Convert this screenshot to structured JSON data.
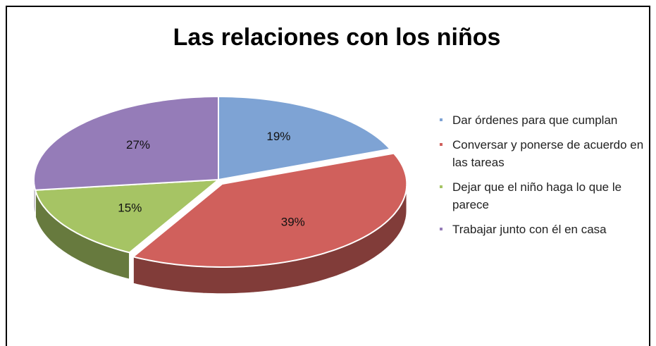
{
  "chart_data": {
    "type": "pie3d",
    "title": "Las relaciones con los niños",
    "categories": [
      "Dar órdenes para que cumplan",
      "Conversar y ponerse de acuerdo en las tareas",
      "Dejar que el niño haga lo que le parece",
      "Trabajar junto con él en casa"
    ],
    "values": [
      19,
      39,
      15,
      27
    ],
    "value_labels": [
      "19%",
      "39%",
      "15%",
      "27%"
    ],
    "colors": [
      "#7ea3d4",
      "#d0605c",
      "#a6c464",
      "#957cb8"
    ],
    "legend": "right"
  }
}
